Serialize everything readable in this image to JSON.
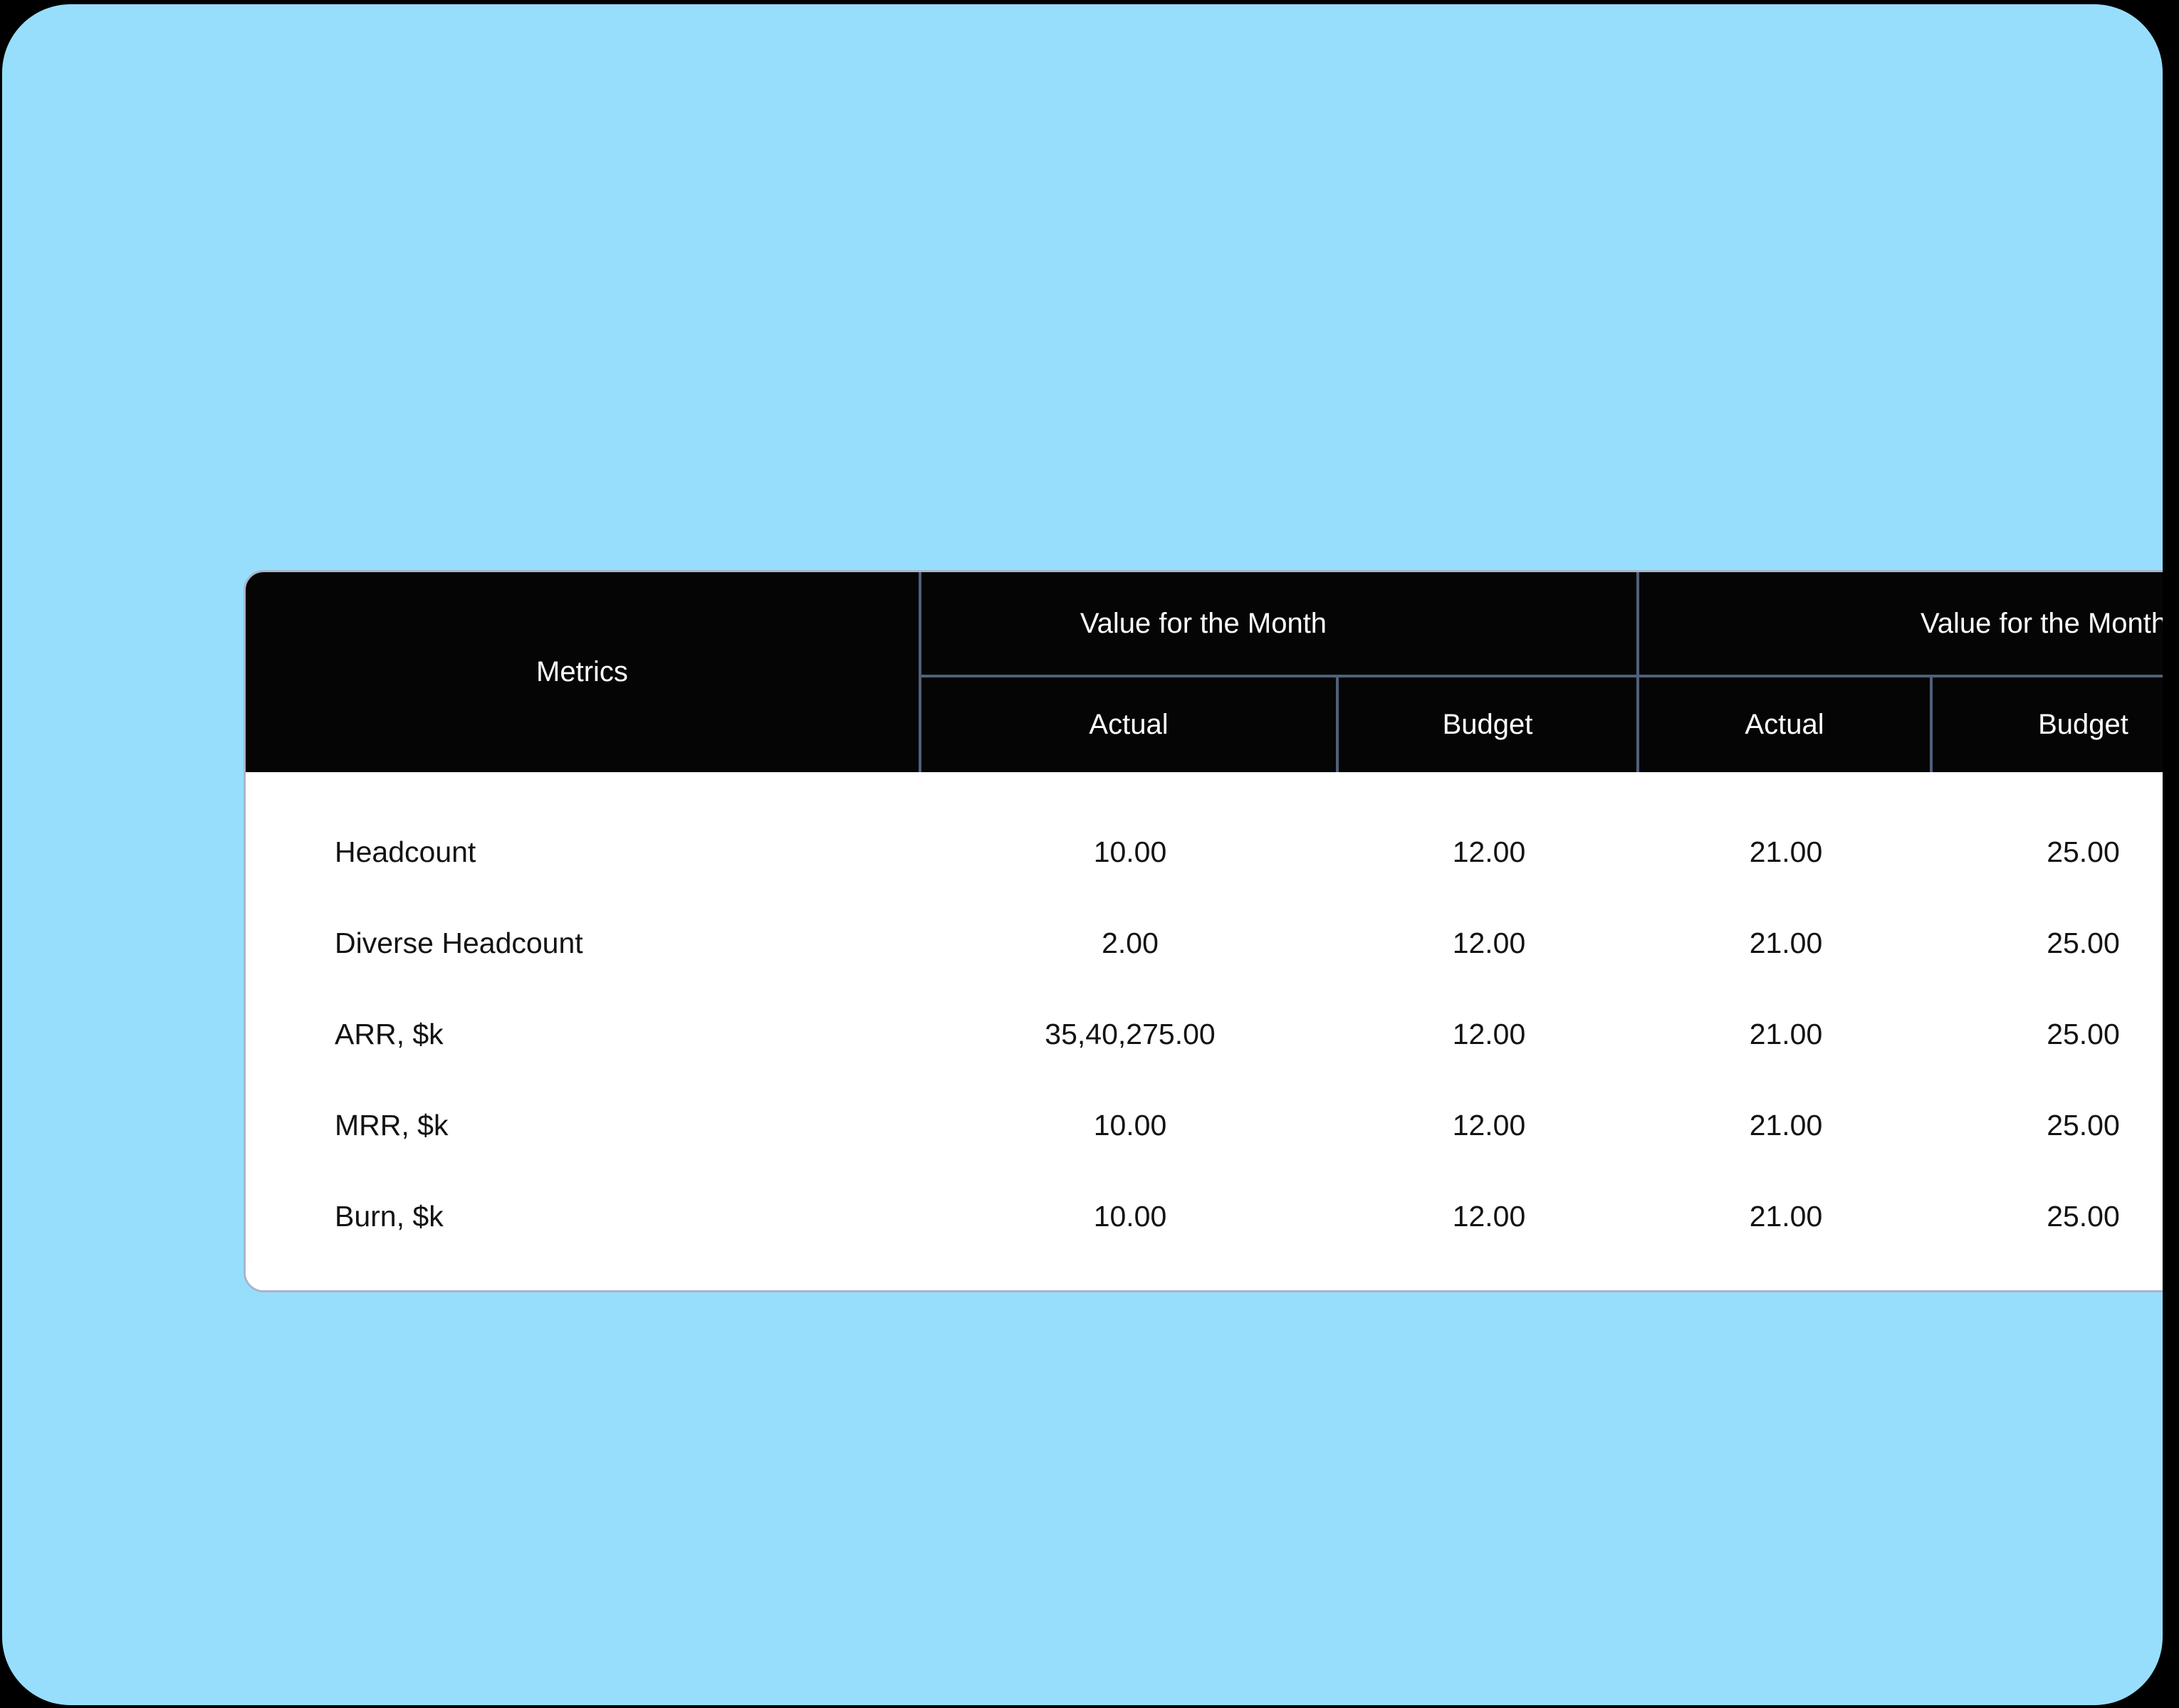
{
  "canvas": {
    "frame_color": "#000000",
    "surface_color": "#97defd"
  },
  "table": {
    "colors": {
      "header_bg": "#050505",
      "header_text": "#ffffff",
      "divider": "#50607a",
      "card_border": "#a9b4ca",
      "body_bg": "#ffffff",
      "body_text": "#131313"
    },
    "corner_header": "Metrics",
    "column_groups": [
      {
        "label": "Value for the Month",
        "columns": [
          "Actual",
          "Budget"
        ]
      },
      {
        "label": "Value for the Month",
        "columns": [
          "Actual",
          "Budget"
        ]
      }
    ],
    "rows": [
      {
        "metric": "Headcount",
        "values": [
          "10.00",
          "12.00",
          "21.00",
          "25.00"
        ]
      },
      {
        "metric": "Diverse Headcount",
        "values": [
          "2.00",
          "12.00",
          "21.00",
          "25.00"
        ]
      },
      {
        "metric": "ARR, $k",
        "values": [
          "35,40,275.00",
          "12.00",
          "21.00",
          "25.00"
        ]
      },
      {
        "metric": "MRR, $k",
        "values": [
          "10.00",
          "12.00",
          "21.00",
          "25.00"
        ]
      },
      {
        "metric": "Burn, $k",
        "values": [
          "10.00",
          "12.00",
          "21.00",
          "25.00"
        ]
      }
    ]
  }
}
